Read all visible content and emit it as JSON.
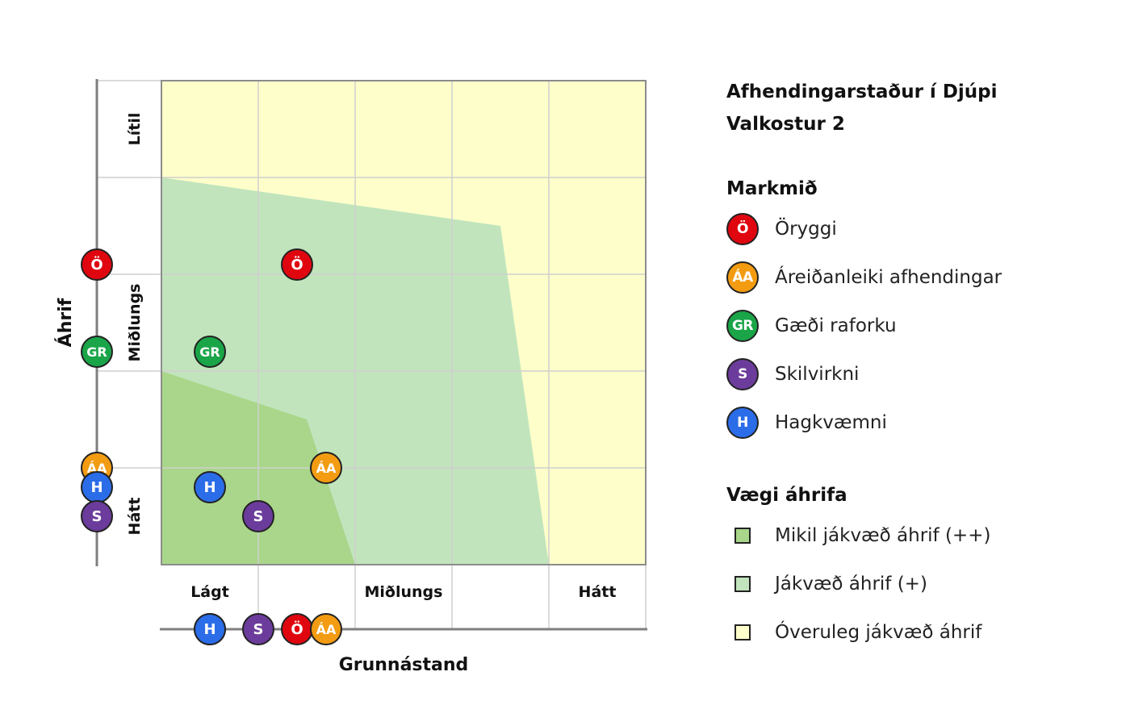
{
  "legend": {
    "title_line1": "Afhendingarstaður í Djúpi",
    "title_line2": "Valkostur 2",
    "objectives_heading": "Markmið",
    "objectives": [
      {
        "code": "Ö",
        "label": "Öryggi",
        "color": "#e0060f"
      },
      {
        "code": "ÁA",
        "label": "Áreiðanleiki afhendingar",
        "color": "#f39c12"
      },
      {
        "code": "GR",
        "label": "Gæði raforku",
        "color": "#1aa548"
      },
      {
        "code": "S",
        "label": "Skilvirkni",
        "color": "#6c3c9c"
      },
      {
        "code": "H",
        "label": "Hagkvæmni",
        "color": "#2b6de8"
      }
    ],
    "weights_heading": "Vægi áhrifa",
    "weights": [
      {
        "label": "Mikil jákvæð áhrif (++)",
        "color": "#a9d68a"
      },
      {
        "label": "Jákvæð áhrif (+)",
        "color": "#c1e4bc"
      },
      {
        "label": "Óveruleg jákvæð áhrif",
        "color": "#fefecb"
      }
    ]
  },
  "chart_data": {
    "type": "scatter",
    "xlabel": "Grunnástand",
    "ylabel": "Áhrif",
    "x_tick_labels": [
      {
        "label": "Lágt",
        "at": 0.5
      },
      {
        "label": "Miðlungs",
        "at": 2.5
      },
      {
        "label": "Hátt",
        "at": 4.5
      }
    ],
    "y_tick_labels": [
      {
        "label": "Hátt",
        "at": 0.5
      },
      {
        "label": "Miðlungs",
        "at": 2.5
      },
      {
        "label": "Lítil",
        "at": 4.5
      }
    ],
    "xlim": [
      0,
      5
    ],
    "ylim": [
      0,
      5
    ],
    "grid": true,
    "zones": [
      {
        "name": "Óveruleg jákvæð áhrif",
        "color": "#fefecb",
        "polygon": [
          [
            0,
            0
          ],
          [
            5,
            0
          ],
          [
            5,
            5
          ],
          [
            0,
            5
          ]
        ]
      },
      {
        "name": "Jákvæð áhrif (+)",
        "color": "#c1e4bc",
        "polygon": [
          [
            0,
            0
          ],
          [
            4,
            0
          ],
          [
            3.5,
            3.5
          ],
          [
            0,
            4
          ]
        ]
      },
      {
        "name": "Mikil jákvæð áhrif (++)",
        "color": "#a9d68a",
        "polygon": [
          [
            0,
            0
          ],
          [
            2,
            0
          ],
          [
            1.5,
            1.5
          ],
          [
            0,
            2
          ]
        ]
      }
    ],
    "points": [
      {
        "code": "Ö",
        "x": 1.4,
        "y": 3.1
      },
      {
        "code": "GR",
        "x": 0.5,
        "y": 2.2
      },
      {
        "code": "ÁA",
        "x": 1.7,
        "y": 1.0
      },
      {
        "code": "H",
        "x": 0.5,
        "y": 0.8
      },
      {
        "code": "S",
        "x": 1.0,
        "y": 0.5
      }
    ]
  }
}
